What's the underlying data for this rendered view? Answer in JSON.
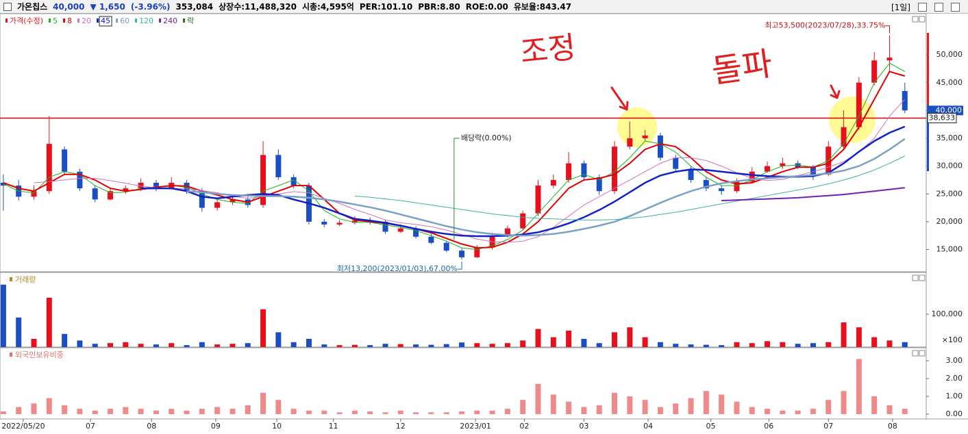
{
  "header": {
    "name": "가온칩스",
    "price": "40,000",
    "change": "▼ 1,650",
    "change_pct": "(-3.96%)",
    "volume": "353,084",
    "listed": "상장수:11,488,320",
    "market_cap": "시총:4,595억",
    "per": "PER:101.10",
    "pbr": "PBR:8.80",
    "roe": "ROE:0.00",
    "reserve": "유보율:843.47",
    "period": "[1일]"
  },
  "chart_data": [
    {
      "type": "candlestick",
      "legend_title": "가격(수정)",
      "legend_suffix": "락",
      "open": [
        27000,
        26500,
        24500,
        25500,
        33000,
        29000,
        26000,
        24000,
        25500,
        26000,
        27000,
        26000,
        27000,
        25500,
        22500,
        23500,
        24000,
        23000,
        32000,
        28000,
        26500,
        20000,
        19500,
        19800,
        20200,
        20000,
        18200,
        18800,
        17300,
        16200,
        14800,
        13600,
        15400,
        17500,
        18800,
        21500,
        26500,
        27500,
        30500,
        28000,
        25500,
        33500,
        35000,
        35500,
        31500,
        29500,
        27500,
        26000,
        25500,
        27200,
        29000,
        30000,
        30500,
        29800,
        28500,
        33500,
        37000,
        45000,
        49000,
        43500
      ],
      "high": [
        28500,
        27500,
        26500,
        39000,
        33500,
        29500,
        26500,
        26000,
        26500,
        27800,
        27500,
        28000,
        27500,
        26000,
        24000,
        24800,
        24500,
        34500,
        33000,
        28500,
        27000,
        20500,
        20300,
        21000,
        20800,
        20400,
        19500,
        19200,
        17800,
        16600,
        15200,
        15800,
        18000,
        19300,
        22000,
        27500,
        28500,
        32500,
        31000,
        28500,
        34500,
        38000,
        36500,
        36000,
        32000,
        30000,
        28000,
        26500,
        27800,
        29800,
        30800,
        31500,
        31000,
        30200,
        34500,
        40000,
        46000,
        50500,
        53500,
        45000
      ],
      "low": [
        22000,
        23800,
        24000,
        25000,
        28500,
        25500,
        23500,
        23800,
        25000,
        25500,
        25500,
        25800,
        25000,
        21800,
        22000,
        23000,
        22500,
        22500,
        27500,
        26000,
        19500,
        19000,
        19200,
        19500,
        19500,
        17800,
        18000,
        17000,
        16000,
        14500,
        13200,
        13500,
        15000,
        17200,
        18500,
        21000,
        26000,
        27000,
        27500,
        24800,
        25000,
        33000,
        34500,
        31000,
        29000,
        27000,
        25500,
        24800,
        25200,
        27000,
        28800,
        29500,
        29500,
        27500,
        28200,
        33000,
        36500,
        44500,
        47000,
        39500
      ],
      "close": [
        26500,
        24500,
        25500,
        34000,
        29000,
        26000,
        24000,
        25500,
        26000,
        27000,
        26000,
        27000,
        25500,
        22500,
        23500,
        24000,
        23000,
        32000,
        28000,
        26500,
        20000,
        19500,
        19800,
        20200,
        20000,
        18200,
        18800,
        17300,
        16200,
        14800,
        13600,
        15400,
        17500,
        18800,
        21500,
        26500,
        27500,
        30500,
        28000,
        25500,
        33500,
        35000,
        35500,
        31500,
        29500,
        27500,
        26000,
        25500,
        27200,
        29000,
        30000,
        30500,
        29800,
        28500,
        33500,
        37000,
        45000,
        49000,
        49500,
        40000
      ],
      "up_color": "#e8101c",
      "down_color": "#1a4fc4",
      "series": [
        {
          "name": "5",
          "color": "#1db31d",
          "width": 1,
          "values": [
            26800,
            25500,
            25200,
            28000,
            29000,
            28500,
            26500,
            25200,
            25300,
            26000,
            26300,
            26500,
            26200,
            25000,
            24000,
            23500,
            23300,
            25500,
            26500,
            27500,
            25500,
            22000,
            20500,
            19900,
            19900,
            19400,
            19000,
            18400,
            17500,
            16500,
            15300,
            15000,
            15700,
            16800,
            18500,
            21500,
            24500,
            27500,
            28500,
            27500,
            29000,
            31500,
            34500,
            34000,
            32500,
            30000,
            28000,
            26500,
            26500,
            27500,
            29000,
            30000,
            30200,
            29800,
            31000,
            34000,
            39000,
            45000,
            48500,
            47000
          ]
        },
        {
          "name": "8",
          "color": "#e00000",
          "width": 2,
          "values": [
            27000,
            26000,
            25500,
            27000,
            28500,
            28500,
            27500,
            26000,
            25500,
            25800,
            26200,
            26500,
            26400,
            25500,
            24800,
            24000,
            23500,
            24500,
            25500,
            26500,
            26500,
            24000,
            21500,
            20300,
            20000,
            19700,
            19300,
            18700,
            18000,
            17000,
            16000,
            15300,
            15400,
            16300,
            17800,
            20000,
            23000,
            26000,
            27500,
            27800,
            28500,
            30500,
            33000,
            34000,
            33500,
            31500,
            29000,
            27500,
            26800,
            27000,
            28000,
            29000,
            29800,
            29800,
            30500,
            33000,
            37000,
            42000,
            47000,
            46200
          ]
        },
        {
          "name": "20",
          "color": "#d070c0",
          "width": 1,
          "values": [
            null,
            null,
            27000,
            27200,
            27500,
            27800,
            27800,
            27400,
            26900,
            26400,
            26100,
            26000,
            25900,
            25600,
            25200,
            24600,
            24200,
            24500,
            25000,
            25400,
            25200,
            24200,
            23300,
            22200,
            21300,
            20300,
            19800,
            19500,
            19100,
            18500,
            17700,
            16900,
            16400,
            16300,
            16500,
            17300,
            19000,
            21000,
            23000,
            24500,
            26000,
            27500,
            29000,
            30500,
            31500,
            31500,
            31000,
            30000,
            28800,
            27800,
            27400,
            27600,
            28300,
            29000,
            29800,
            30800,
            32500,
            35000,
            39000,
            42000
          ]
        },
        {
          "name": "45",
          "color": "#1020c8",
          "width": 2.5,
          "values": [
            null,
            null,
            null,
            null,
            null,
            null,
            null,
            null,
            null,
            26000,
            26000,
            26000,
            25500,
            24500,
            24200,
            24500,
            24800,
            25000,
            24800,
            24000,
            23300,
            22500,
            21500,
            20500,
            20200,
            19800,
            19300,
            18700,
            18200,
            17800,
            17500,
            17400,
            17400,
            17500,
            17700,
            18100,
            18800,
            19700,
            20800,
            22100,
            23600,
            25300,
            27000,
            28300,
            29000,
            29400,
            29300,
            29000,
            28700,
            28400,
            28200,
            28100,
            28100,
            28200,
            28800,
            30500,
            32600,
            34500,
            36000,
            37100
          ]
        },
        {
          "name": "60",
          "color": "#7ba0c8",
          "width": 2.5,
          "values": [
            null,
            null,
            null,
            null,
            null,
            null,
            null,
            null,
            null,
            null,
            null,
            null,
            25500,
            25300,
            25000,
            24800,
            24700,
            24600,
            24600,
            24500,
            24300,
            24000,
            23600,
            23100,
            22600,
            22000,
            21300,
            20600,
            19900,
            19200,
            18600,
            18100,
            17800,
            17600,
            17500,
            17600,
            17800,
            18200,
            18700,
            19300,
            20000,
            21000,
            22200,
            23400,
            24500,
            25500,
            26300,
            26900,
            27300,
            27600,
            27800,
            28000,
            28200,
            28400,
            28700,
            29200,
            30000,
            31300,
            33000,
            34900
          ]
        },
        {
          "name": "120",
          "color": "#40b0a0",
          "width": 1,
          "values": [
            null,
            null,
            null,
            null,
            null,
            null,
            null,
            null,
            null,
            null,
            null,
            null,
            null,
            null,
            null,
            null,
            null,
            null,
            null,
            null,
            null,
            null,
            null,
            24600,
            24400,
            24100,
            23800,
            23400,
            23000,
            22600,
            22200,
            21800,
            21400,
            21100,
            20800,
            20600,
            20500,
            20400,
            20300,
            20300,
            20400,
            20600,
            20900,
            21300,
            21700,
            22200,
            22700,
            23200,
            23700,
            24200,
            24700,
            25200,
            25700,
            26200,
            26800,
            27500,
            28300,
            29300,
            30500,
            31800
          ]
        },
        {
          "name": "240",
          "color": "#7020b0",
          "width": 2,
          "values": [
            null,
            null,
            null,
            null,
            null,
            null,
            null,
            null,
            null,
            null,
            null,
            null,
            null,
            null,
            null,
            null,
            null,
            null,
            null,
            null,
            null,
            null,
            null,
            null,
            null,
            null,
            null,
            null,
            null,
            null,
            null,
            null,
            null,
            null,
            null,
            null,
            null,
            null,
            null,
            null,
            null,
            null,
            null,
            null,
            null,
            null,
            null,
            23800,
            23900,
            24000,
            24100,
            24200,
            24300,
            24500,
            24700,
            24900,
            25200,
            25500,
            25800,
            26100
          ]
        }
      ],
      "xlim": [
        -0.22,
        60.4
      ],
      "ylim": [
        11000,
        57400
      ],
      "yticks": [
        {
          "value": 15000,
          "label": "15,000"
        },
        {
          "value": 20000,
          "label": "20,000"
        },
        {
          "value": 25000,
          "label": "25,000"
        },
        {
          "value": 30000,
          "label": "30,000"
        },
        {
          "value": 35000,
          "label": "35,000"
        },
        {
          "value": 40000,
          "label": "40,000"
        },
        {
          "value": 45000,
          "label": "45,000"
        },
        {
          "value": 50000,
          "label": "50,000"
        }
      ],
      "reference_line": {
        "value": 38633,
        "label": "38,633",
        "color": "#e00000"
      },
      "last_price": {
        "value": 40000,
        "label": "40,000"
      },
      "annotations": [
        {
          "text": "최고53,500(2023/07/28),33.75%",
          "x": 58,
          "y": 53500,
          "color": "#c01010"
        },
        {
          "text": "최저13,200(2023/01/03),67.00%",
          "x": 30,
          "y": 13200,
          "color": "#1a6aa8"
        }
      ],
      "dividend": {
        "text": "배당락(0.00%)",
        "x": 29.5
      },
      "notes": [
        "조정",
        "돌파"
      ]
    },
    {
      "type": "bar",
      "title": "거래량",
      "values": [
        190000,
        90000,
        25000,
        150000,
        40000,
        20000,
        10000,
        12000,
        15000,
        10000,
        8000,
        12000,
        6000,
        15000,
        8000,
        10000,
        12000,
        115000,
        45000,
        15000,
        25000,
        8000,
        6000,
        7000,
        6000,
        10000,
        9000,
        8000,
        7000,
        9000,
        14000,
        12000,
        10000,
        12000,
        20000,
        55000,
        30000,
        50000,
        25000,
        12000,
        45000,
        60000,
        30000,
        15000,
        10000,
        8000,
        7000,
        6000,
        15000,
        12000,
        18000,
        15000,
        10000,
        12000,
        15000,
        75000,
        60000,
        30000,
        20000,
        15000
      ],
      "xlim": [
        -0.22,
        60.4
      ],
      "ylim": [
        0,
        227000
      ],
      "yticks": [
        {
          "value": 100000,
          "label": "100,000"
        }
      ],
      "unit_label": "×100"
    },
    {
      "type": "bar",
      "title": "외국인보유비중",
      "color": "#f08a8a",
      "values": [
        0.15,
        0.4,
        0.6,
        0.9,
        0.5,
        0.3,
        0.2,
        0.3,
        0.4,
        0.3,
        0.2,
        0.3,
        0.2,
        0.3,
        0.4,
        0.3,
        0.5,
        1.2,
        0.8,
        0.3,
        0.2,
        0.2,
        0.1,
        0.2,
        0.15,
        0.1,
        0.2,
        0.1,
        0.1,
        0.1,
        0.15,
        0.2,
        0.2,
        0.3,
        0.8,
        1.7,
        1.1,
        0.7,
        0.4,
        0.5,
        1.2,
        1.0,
        0.8,
        0.4,
        0.6,
        0.9,
        1.3,
        1.1,
        0.7,
        0.4,
        0.3,
        0.2,
        0.2,
        0.3,
        0.8,
        1.3,
        3.1,
        1.0,
        0.5,
        0.3
      ],
      "xlim": [
        -0.22,
        60.4
      ],
      "ylim": [
        -0.27,
        3.73
      ],
      "yticks": [
        {
          "value": 0,
          "label": "0.00"
        },
        {
          "value": 1,
          "label": "1.00"
        },
        {
          "value": 2,
          "label": "2.00"
        },
        {
          "value": 3,
          "label": "3.00"
        }
      ],
      "xticks": [
        {
          "value": 1.3,
          "label": "2022/05/20"
        },
        {
          "value": 5.7,
          "label": "07"
        },
        {
          "value": 9.7,
          "label": "08"
        },
        {
          "value": 13.9,
          "label": "09"
        },
        {
          "value": 17.9,
          "label": "10"
        },
        {
          "value": 21.6,
          "label": "11"
        },
        {
          "value": 26.0,
          "label": "12"
        },
        {
          "value": 30.9,
          "label": "2023/01"
        },
        {
          "value": 34.1,
          "label": "02"
        },
        {
          "value": 38.0,
          "label": "03"
        },
        {
          "value": 42.2,
          "label": "04"
        },
        {
          "value": 46.3,
          "label": "05"
        },
        {
          "value": 50.1,
          "label": "06"
        },
        {
          "value": 54.0,
          "label": "07"
        },
        {
          "value": 58.2,
          "label": "08"
        }
      ]
    }
  ]
}
